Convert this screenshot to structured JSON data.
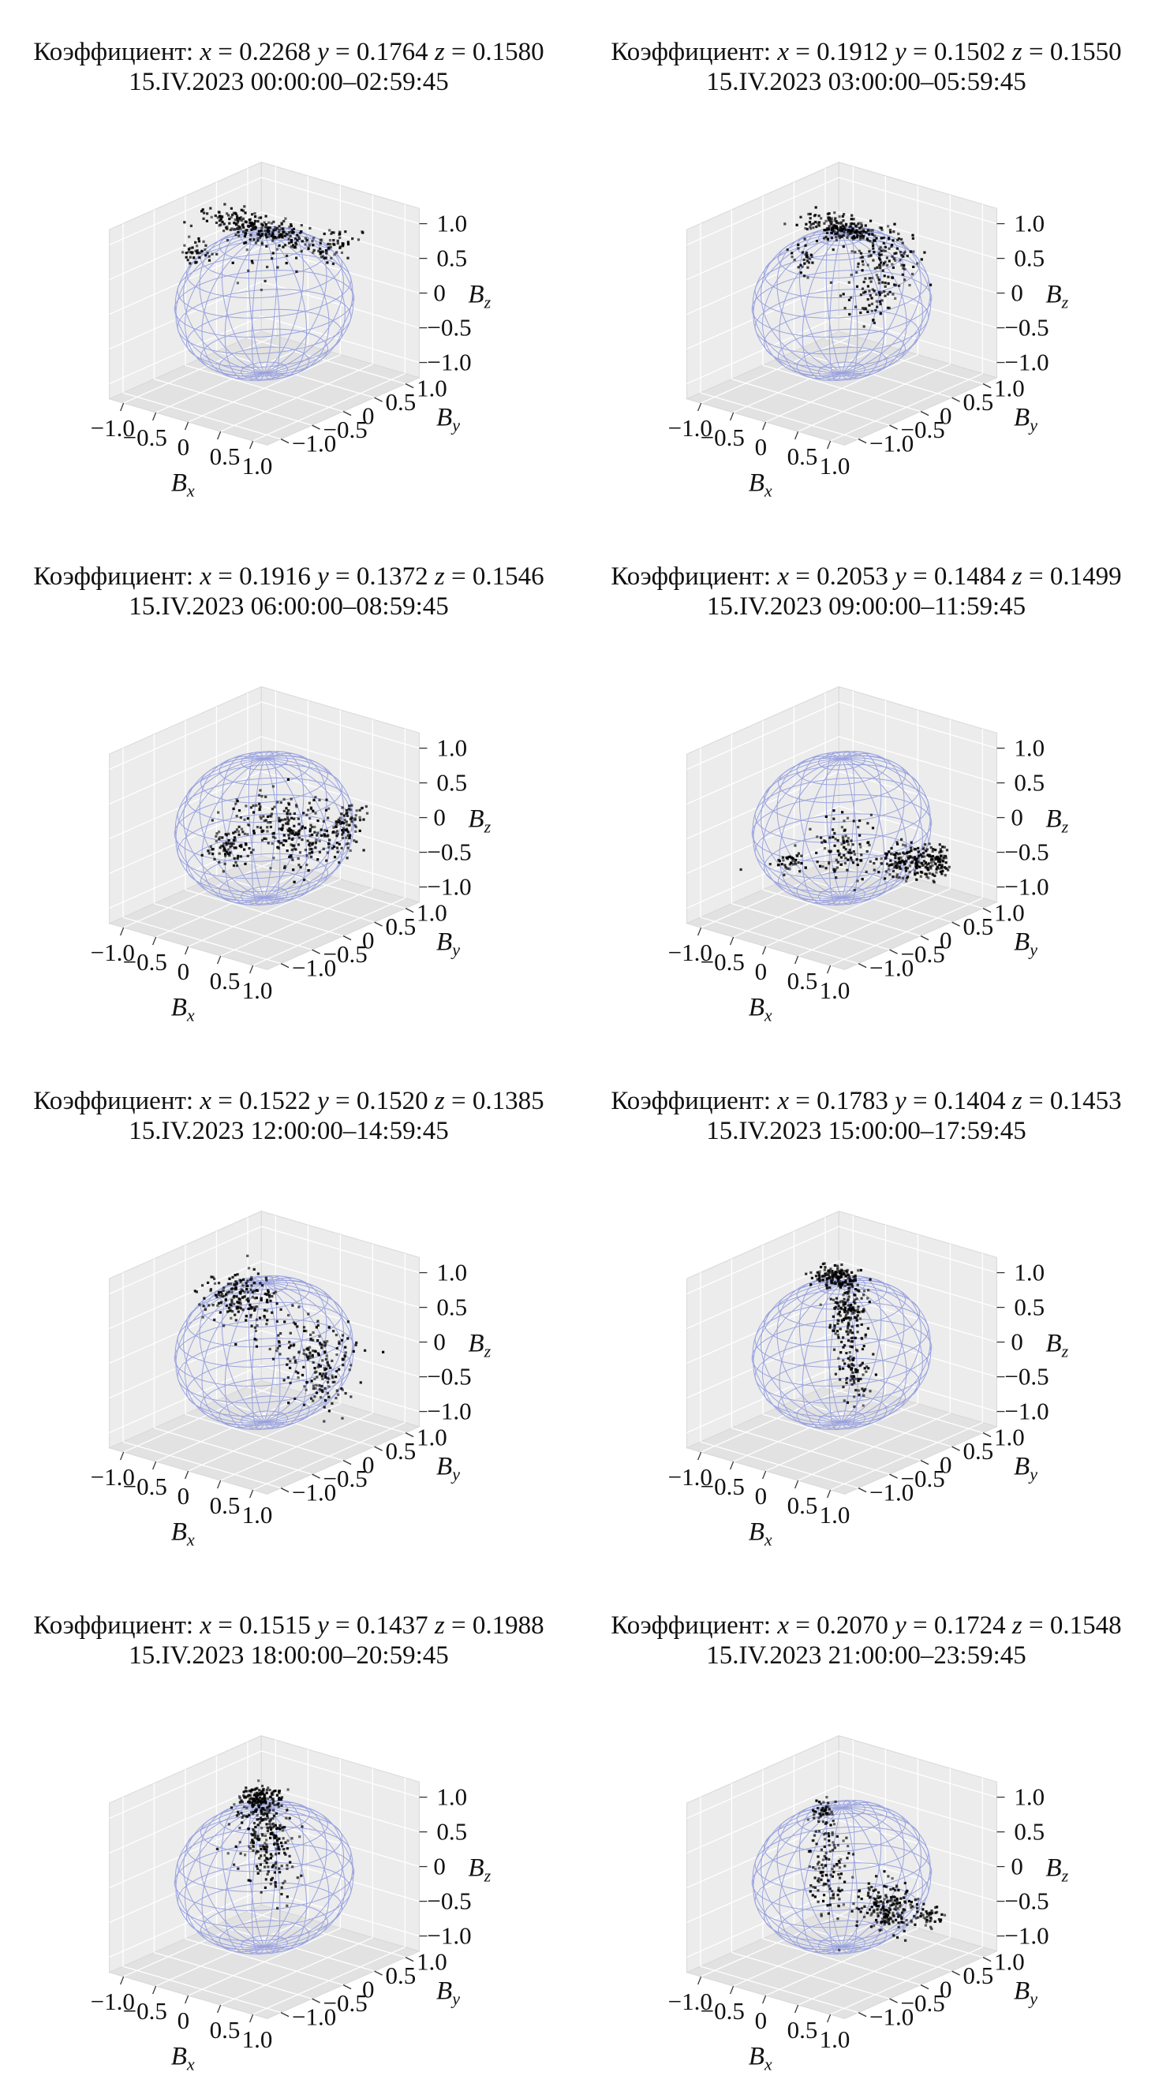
{
  "figure": {
    "axis_labels": {
      "x": "B",
      "x_sub": "x",
      "y": "B",
      "y_sub": "y",
      "z": "B",
      "z_sub": "z"
    },
    "coef_prefix": "Коэффициент: ",
    "coef_x_label": "x",
    "coef_y_label": "y",
    "coef_z_label": "z",
    "eq": " = ",
    "tick_labels": {
      "x": [
        "−1.0",
        "−0.5",
        "0",
        "0.5",
        "1.0"
      ],
      "y": [
        "1.0",
        "0.5",
        "0",
        "−0.5",
        "−1.0"
      ],
      "z": [
        "1.0",
        "0.5",
        "0",
        "−0.5",
        "−1.0"
      ]
    },
    "colors": {
      "wireframe": "#9aa3de",
      "points": "#000000",
      "pane": "#ececec",
      "pane_dark": "#e2e2e2",
      "grid": "#ffffff"
    }
  },
  "chart_data": [
    {
      "type": "scatter",
      "title_coef": {
        "x": "0.2268",
        "y": "0.1764",
        "z": "0.1580"
      },
      "title_date": "15.IV.2023 00:00:00–02:59:45",
      "xlim": [
        -1,
        1
      ],
      "ylim": [
        -1,
        1
      ],
      "zlim": [
        -1,
        1
      ],
      "grid": true,
      "clusters": [
        {
          "center": [
            -0.2,
            0.15,
            0.95
          ],
          "spread": [
            0.45,
            0.15,
            0.06
          ],
          "count": 260
        },
        {
          "center": [
            -0.75,
            -0.3,
            0.65
          ],
          "spread": [
            0.08,
            0.08,
            0.06
          ],
          "count": 40
        },
        {
          "center": [
            0.55,
            0.55,
            0.8
          ],
          "spread": [
            0.1,
            0.15,
            0.08
          ],
          "count": 50
        },
        {
          "center": [
            0.0,
            0.0,
            0.45
          ],
          "spread": [
            0.25,
            0.25,
            0.2
          ],
          "count": 15
        }
      ]
    },
    {
      "type": "scatter",
      "title_coef": {
        "x": "0.1912",
        "y": "0.1502",
        "z": "0.1550"
      },
      "title_date": "15.IV.2023 03:00:00–05:59:45",
      "xlim": [
        -1,
        1
      ],
      "ylim": [
        -1,
        1
      ],
      "zlim": [
        -1,
        1
      ],
      "grid": true,
      "clusters": [
        {
          "center": [
            -0.15,
            0.2,
            0.95
          ],
          "spread": [
            0.3,
            0.12,
            0.05
          ],
          "count": 200
        },
        {
          "center": [
            0.35,
            0.3,
            0.55
          ],
          "spread": [
            0.15,
            0.25,
            0.25
          ],
          "count": 120
        },
        {
          "center": [
            0.35,
            0.15,
            0.1
          ],
          "spread": [
            0.1,
            0.15,
            0.2
          ],
          "count": 50
        },
        {
          "center": [
            -0.4,
            -0.2,
            0.6
          ],
          "spread": [
            0.1,
            0.1,
            0.12
          ],
          "count": 30
        }
      ]
    },
    {
      "type": "scatter",
      "title_coef": {
        "x": "0.1916",
        "y": "0.1372",
        "z": "0.1546"
      },
      "title_date": "15.IV.2023 06:00:00–08:59:45",
      "xlim": [
        -1,
        1
      ],
      "ylim": [
        -1,
        1
      ],
      "zlim": [
        -1,
        1
      ],
      "grid": true,
      "clusters": [
        {
          "center": [
            0.3,
            0.3,
            -0.15
          ],
          "spread": [
            0.3,
            0.25,
            0.2
          ],
          "count": 200
        },
        {
          "center": [
            -0.4,
            -0.15,
            -0.3
          ],
          "spread": [
            0.15,
            0.1,
            0.15
          ],
          "count": 80
        },
        {
          "center": [
            0.85,
            0.45,
            0.1
          ],
          "spread": [
            0.08,
            0.15,
            0.15
          ],
          "count": 60
        },
        {
          "center": [
            0.0,
            0.0,
            0.2
          ],
          "spread": [
            0.25,
            0.2,
            0.15
          ],
          "count": 60
        }
      ]
    },
    {
      "type": "scatter",
      "title_coef": {
        "x": "0.2053",
        "y": "0.1484",
        "z": "0.1499"
      },
      "title_date": "15.IV.2023 09:00:00–11:59:45",
      "xlim": [
        -1,
        1
      ],
      "ylim": [
        -1,
        1
      ],
      "zlim": [
        -1,
        1
      ],
      "grid": true,
      "clusters": [
        {
          "center": [
            0.65,
            0.45,
            -0.5
          ],
          "spread": [
            0.2,
            0.15,
            0.1
          ],
          "count": 190
        },
        {
          "center": [
            0.05,
            0.0,
            -0.25
          ],
          "spread": [
            0.15,
            0.12,
            0.22
          ],
          "count": 100
        },
        {
          "center": [
            -0.6,
            -0.25,
            -0.55
          ],
          "spread": [
            0.12,
            0.1,
            0.06
          ],
          "count": 40
        },
        {
          "center": [
            0.95,
            0.6,
            -0.45
          ],
          "spread": [
            0.06,
            0.08,
            0.08
          ],
          "count": 50
        }
      ]
    },
    {
      "type": "scatter",
      "title_coef": {
        "x": "0.1522",
        "y": "0.1520",
        "z": "0.1385"
      },
      "title_date": "15.IV.2023 12:00:00–14:59:45",
      "xlim": [
        -1,
        1
      ],
      "ylim": [
        -1,
        1
      ],
      "zlim": [
        -1,
        1
      ],
      "grid": true,
      "clusters": [
        {
          "center": [
            -0.35,
            -0.05,
            0.75
          ],
          "spread": [
            0.22,
            0.18,
            0.15
          ],
          "count": 170
        },
        {
          "center": [
            0.55,
            0.35,
            -0.2
          ],
          "spread": [
            0.18,
            0.2,
            0.3
          ],
          "count": 160
        },
        {
          "center": [
            0.1,
            0.05,
            0.3
          ],
          "spread": [
            0.3,
            0.25,
            0.2
          ],
          "count": 50
        }
      ]
    },
    {
      "type": "scatter",
      "title_coef": {
        "x": "0.1783",
        "y": "0.1404",
        "z": "0.1453"
      },
      "title_date": "15.IV.2023 15:00:00–17:59:45",
      "xlim": [
        -1,
        1
      ],
      "ylim": [
        -1,
        1
      ],
      "zlim": [
        -1,
        1
      ],
      "grid": true,
      "clusters": [
        {
          "center": [
            -0.15,
            0.1,
            1.0
          ],
          "spread": [
            0.15,
            0.1,
            0.05
          ],
          "count": 150
        },
        {
          "center": [
            0.05,
            0.05,
            0.55
          ],
          "spread": [
            0.1,
            0.1,
            0.25
          ],
          "count": 150
        },
        {
          "center": [
            0.15,
            0.05,
            -0.2
          ],
          "spread": [
            0.1,
            0.1,
            0.3
          ],
          "count": 80
        }
      ]
    },
    {
      "type": "scatter",
      "title_coef": {
        "x": "0.1515",
        "y": "0.1437",
        "z": "0.1988"
      },
      "title_date": "15.IV.2023 18:00:00–20:59:45",
      "xlim": [
        -1,
        1
      ],
      "ylim": [
        -1,
        1
      ],
      "zlim": [
        -1,
        1
      ],
      "grid": true,
      "clusters": [
        {
          "center": [
            -0.1,
            0.05,
            1.05
          ],
          "spread": [
            0.15,
            0.12,
            0.15
          ],
          "count": 190
        },
        {
          "center": [
            0.0,
            0.0,
            0.55
          ],
          "spread": [
            0.15,
            0.15,
            0.2
          ],
          "count": 120
        },
        {
          "center": [
            0.05,
            0.1,
            0.1
          ],
          "spread": [
            0.15,
            0.12,
            0.25
          ],
          "count": 60
        }
      ]
    },
    {
      "type": "scatter",
      "title_coef": {
        "x": "0.2070",
        "y": "0.1724",
        "z": "0.1548"
      },
      "title_date": "15.IV.2023 21:00:00–23:59:45",
      "xlim": [
        -1,
        1
      ],
      "ylim": [
        -1,
        1
      ],
      "zlim": [
        -1,
        1
      ],
      "grid": true,
      "clusters": [
        {
          "center": [
            0.45,
            0.3,
            -0.45
          ],
          "spread": [
            0.22,
            0.15,
            0.15
          ],
          "count": 200
        },
        {
          "center": [
            -0.15,
            -0.05,
            0.15
          ],
          "spread": [
            0.12,
            0.1,
            0.35
          ],
          "count": 120
        },
        {
          "center": [
            -0.25,
            -0.05,
            0.9
          ],
          "spread": [
            0.06,
            0.06,
            0.08
          ],
          "count": 40
        },
        {
          "center": [
            0.85,
            0.55,
            -0.55
          ],
          "spread": [
            0.08,
            0.08,
            0.06
          ],
          "count": 30
        }
      ]
    }
  ]
}
